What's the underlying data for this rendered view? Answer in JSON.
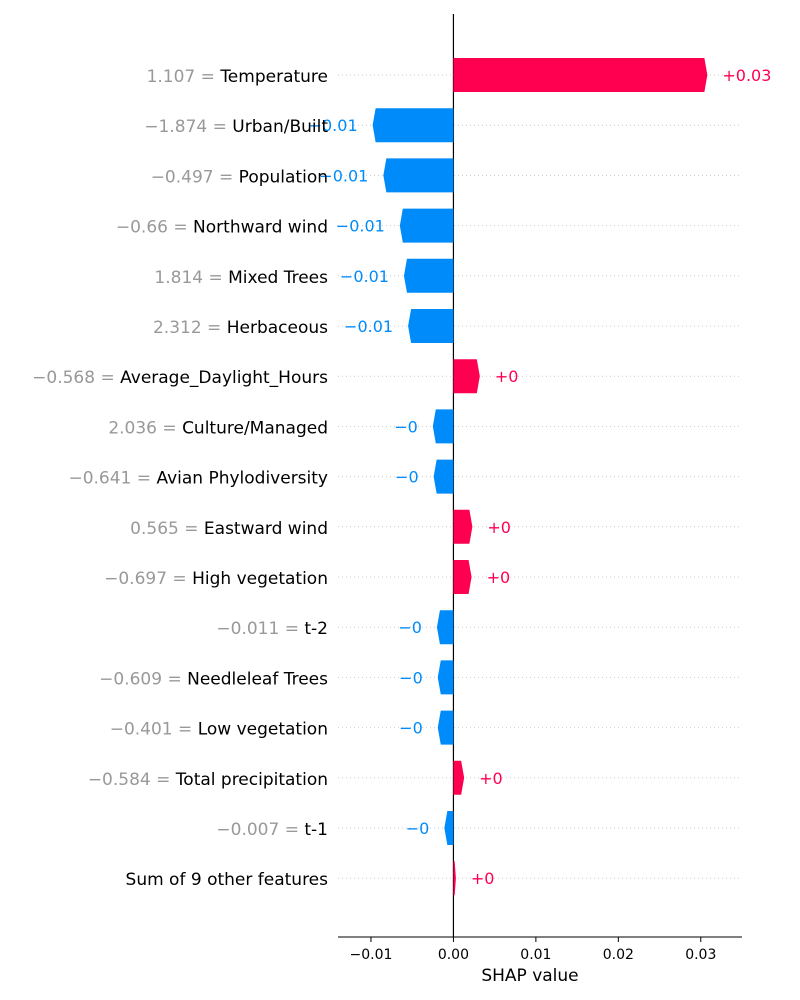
{
  "chart_data": {
    "type": "bar",
    "orientation": "horizontal",
    "xlabel": "SHAP value",
    "xlim": [
      -0.014,
      0.035
    ],
    "xticks": [
      -0.01,
      0.0,
      0.01,
      0.02,
      0.03
    ],
    "xtick_labels": [
      "−0.01",
      "0.00",
      "0.01",
      "0.02",
      "0.03"
    ],
    "grid": "dotted horizontal row guides",
    "colors": {
      "positive": "#ff0051",
      "negative": "#008bfb"
    },
    "rows": [
      {
        "value_text": "1.107",
        "feature": "Temperature",
        "shap": 0.0308,
        "label": "+0.03"
      },
      {
        "value_text": "−1.874",
        "feature": "Urban/Built",
        "shap": -0.0098,
        "label": "−0.01"
      },
      {
        "value_text": "−0.497",
        "feature": "Population",
        "shap": -0.0085,
        "label": "−0.01"
      },
      {
        "value_text": "−0.66",
        "feature": "Northward wind",
        "shap": -0.0065,
        "label": "−0.01"
      },
      {
        "value_text": "1.814",
        "feature": "Mixed Trees",
        "shap": -0.006,
        "label": "−0.01"
      },
      {
        "value_text": "2.312",
        "feature": "Herbaceous",
        "shap": -0.0055,
        "label": "−0.01"
      },
      {
        "value_text": "−0.568",
        "feature": "Average_Daylight_Hours",
        "shap": 0.0032,
        "label": "+0"
      },
      {
        "value_text": "2.036",
        "feature": "Culture/Managed",
        "shap": -0.0025,
        "label": "−0"
      },
      {
        "value_text": "−0.641",
        "feature": "Avian Phylodiversity",
        "shap": -0.0024,
        "label": "−0"
      },
      {
        "value_text": "0.565",
        "feature": "Eastward wind",
        "shap": 0.0023,
        "label": "+0"
      },
      {
        "value_text": "−0.697",
        "feature": "High vegetation",
        "shap": 0.0022,
        "label": "+0"
      },
      {
        "value_text": "−0.011",
        "feature": "t-2",
        "shap": -0.002,
        "label": "−0"
      },
      {
        "value_text": "−0.609",
        "feature": "Needleleaf Trees",
        "shap": -0.0019,
        "label": "−0"
      },
      {
        "value_text": "−0.401",
        "feature": "Low vegetation",
        "shap": -0.0019,
        "label": "−0"
      },
      {
        "value_text": "−0.584",
        "feature": "Total precipitation",
        "shap": 0.0013,
        "label": "+0"
      },
      {
        "value_text": "−0.007",
        "feature": "t-1",
        "shap": -0.0011,
        "label": "−0"
      },
      {
        "value_text": "",
        "feature": "Sum of 9 other features",
        "shap": 0.0003,
        "label": "+0"
      }
    ]
  }
}
